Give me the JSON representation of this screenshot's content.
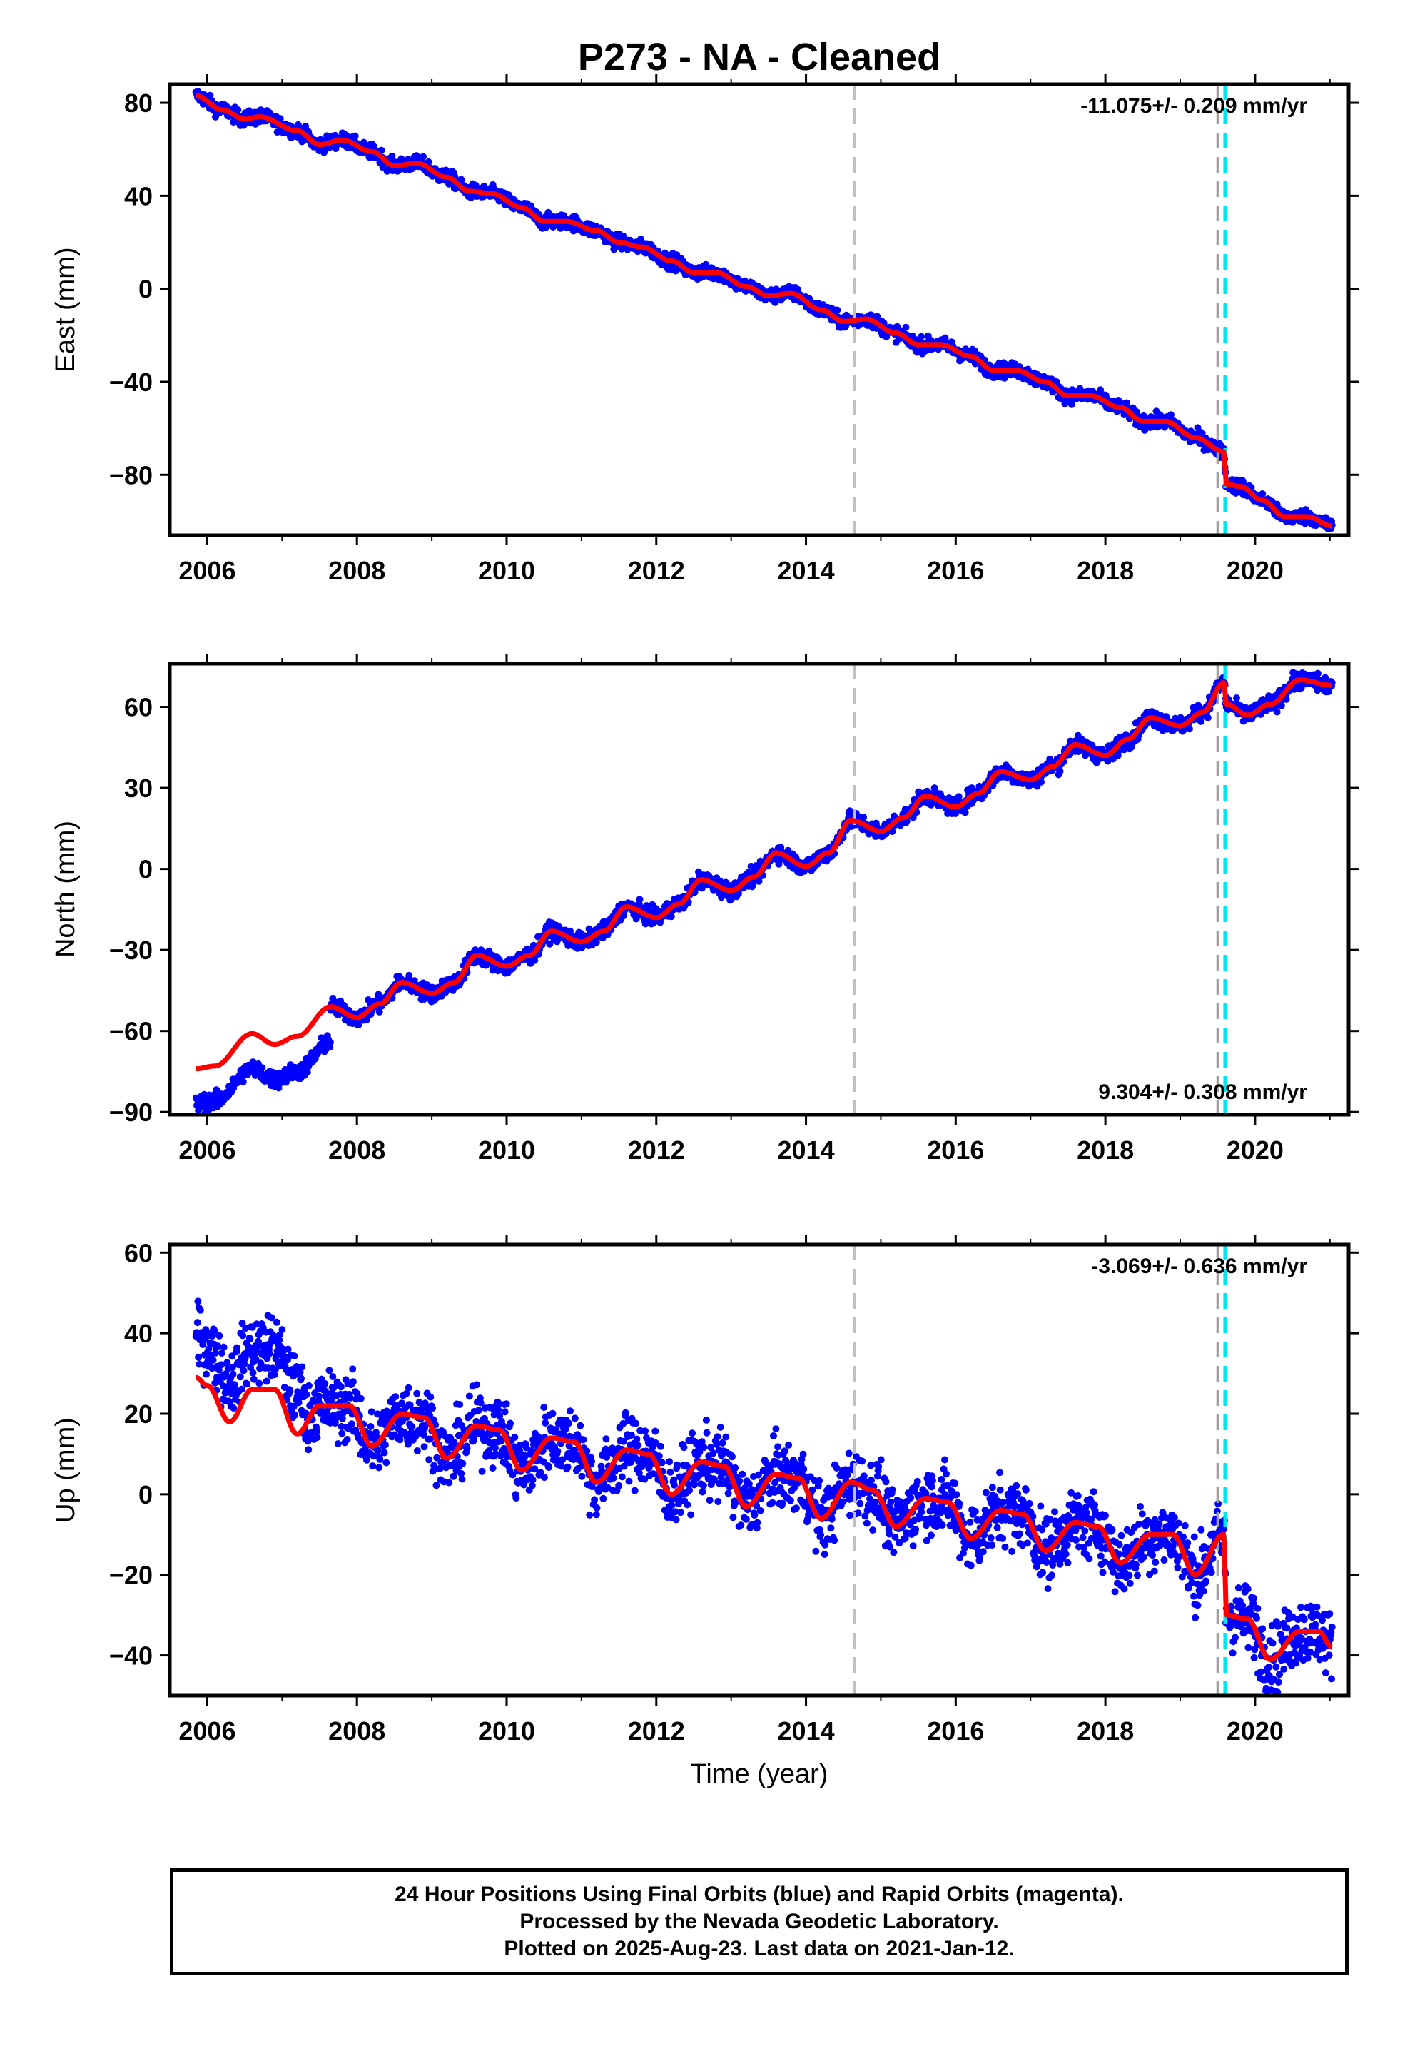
{
  "chart_data": {
    "title": "P273  - NA - Cleaned",
    "xlabel": "Time (year)",
    "xlim": [
      2005.5,
      2021.25
    ],
    "xticks": [
      2006,
      2008,
      2010,
      2012,
      2014,
      2016,
      2018,
      2020
    ],
    "data_start": 2005.85,
    "data_end": 2021.03,
    "vlines": [
      {
        "x": 2014.65,
        "color": "#c0c0c0",
        "style": "dashed"
      },
      {
        "x": 2019.5,
        "color": "#a0a0a0",
        "style": "dashed"
      },
      {
        "x": 2019.6,
        "color": "#00e5ee",
        "style": "dashed"
      }
    ],
    "panels": [
      {
        "type": "scatter",
        "ylabel": "East (mm)",
        "ylim": [
          -106,
          88
        ],
        "yticks": [
          80,
          40,
          0,
          -40,
          -80
        ],
        "rate_label": "-11.075+/- 0.209 mm/yr",
        "rate_position": "top-right",
        "series": [
          {
            "name": "daily positions",
            "color": "#0000ff",
            "kind": "points"
          },
          {
            "name": "model fit",
            "color": "#ff0000",
            "kind": "line"
          }
        ],
        "model": {
          "breaks": [
            [
              2019.6,
              -14
            ]
          ],
          "points": [
            [
              2005.85,
              83
            ],
            [
              2006.2,
              77
            ],
            [
              2006.5,
              73
            ],
            [
              2006.7,
              74
            ],
            [
              2007.2,
              68
            ],
            [
              2007.5,
              62
            ],
            [
              2007.8,
              64
            ],
            [
              2008.2,
              59
            ],
            [
              2008.5,
              53
            ],
            [
              2008.8,
              54
            ],
            [
              2009.2,
              48
            ],
            [
              2009.5,
              42
            ],
            [
              2009.8,
              41
            ],
            [
              2010.2,
              35
            ],
            [
              2010.5,
              29
            ],
            [
              2010.8,
              29
            ],
            [
              2011.2,
              25
            ],
            [
              2011.5,
              20
            ],
            [
              2011.8,
              18
            ],
            [
              2012.2,
              12
            ],
            [
              2012.5,
              7
            ],
            [
              2012.8,
              7
            ],
            [
              2013.2,
              1
            ],
            [
              2013.5,
              -3
            ],
            [
              2013.8,
              -2
            ],
            [
              2014.2,
              -9
            ],
            [
              2014.5,
              -14
            ],
            [
              2014.8,
              -13
            ],
            [
              2015.2,
              -19
            ],
            [
              2015.5,
              -24
            ],
            [
              2015.8,
              -24
            ],
            [
              2016.2,
              -29
            ],
            [
              2016.5,
              -35
            ],
            [
              2016.8,
              -35
            ],
            [
              2017.2,
              -40
            ],
            [
              2017.5,
              -46
            ],
            [
              2017.8,
              -46
            ],
            [
              2018.2,
              -51
            ],
            [
              2018.5,
              -57
            ],
            [
              2018.8,
              -57
            ],
            [
              2019.2,
              -64
            ],
            [
              2019.58,
              -70
            ],
            [
              2019.62,
              -84
            ],
            [
              2019.8,
              -85
            ],
            [
              2020.1,
              -91
            ],
            [
              2020.4,
              -98
            ],
            [
              2020.7,
              -98
            ],
            [
              2021.03,
              -102
            ]
          ]
        }
      },
      {
        "type": "scatter",
        "ylabel": "North (mm)",
        "ylim": [
          -91,
          76
        ],
        "yticks": [
          60,
          30,
          0,
          -30,
          -60,
          -90
        ],
        "rate_label": "9.304+/- 0.308 mm/yr",
        "rate_position": "bottom-right",
        "series": [
          {
            "name": "daily positions",
            "color": "#0000ff",
            "kind": "points"
          },
          {
            "name": "model fit",
            "color": "#ff0000",
            "kind": "line"
          }
        ],
        "model": {
          "breaks": [
            [
              2007.65,
              13
            ],
            [
              2019.6,
              -9
            ]
          ],
          "points": [
            [
              2005.85,
              -74
            ],
            [
              2006.1,
              -73
            ],
            [
              2006.6,
              -61
            ],
            [
              2006.9,
              -65
            ],
            [
              2007.2,
              -62
            ],
            [
              2007.65,
              -51
            ],
            [
              2008.0,
              -55
            ],
            [
              2008.3,
              -50
            ],
            [
              2008.6,
              -42
            ],
            [
              2009.0,
              -46
            ],
            [
              2009.3,
              -42
            ],
            [
              2009.6,
              -32
            ],
            [
              2010.0,
              -36
            ],
            [
              2010.3,
              -32
            ],
            [
              2010.6,
              -23
            ],
            [
              2011.0,
              -27
            ],
            [
              2011.3,
              -23
            ],
            [
              2011.6,
              -14
            ],
            [
              2012.0,
              -18
            ],
            [
              2012.3,
              -13
            ],
            [
              2012.6,
              -4
            ],
            [
              2013.0,
              -8
            ],
            [
              2013.3,
              -3
            ],
            [
              2013.6,
              6
            ],
            [
              2014.0,
              1
            ],
            [
              2014.3,
              6
            ],
            [
              2014.6,
              18
            ],
            [
              2015.0,
              14
            ],
            [
              2015.3,
              19
            ],
            [
              2015.6,
              27
            ],
            [
              2016.0,
              23
            ],
            [
              2016.3,
              28
            ],
            [
              2016.6,
              36
            ],
            [
              2017.0,
              33
            ],
            [
              2017.3,
              38
            ],
            [
              2017.6,
              46
            ],
            [
              2018.0,
              42
            ],
            [
              2018.3,
              48
            ],
            [
              2018.6,
              56
            ],
            [
              2019.0,
              53
            ],
            [
              2019.3,
              58
            ],
            [
              2019.58,
              69
            ],
            [
              2019.62,
              61
            ],
            [
              2019.9,
              57
            ],
            [
              2020.2,
              61
            ],
            [
              2020.6,
              70
            ],
            [
              2021.03,
              68
            ]
          ]
        }
      },
      {
        "type": "scatter",
        "ylabel": "Up (mm)",
        "ylim": [
          -50,
          62
        ],
        "yticks": [
          60,
          40,
          20,
          0,
          -20,
          -40
        ],
        "rate_label": "-3.069+/- 0.636 mm/yr",
        "rate_position": "top-right",
        "series": [
          {
            "name": "daily positions",
            "color": "#0000ff",
            "kind": "points"
          },
          {
            "name": "model fit",
            "color": "#ff0000",
            "kind": "line"
          }
        ],
        "model": {
          "breaks": [
            [
              2019.6,
              -21
            ]
          ],
          "points": [
            [
              2005.85,
              29
            ],
            [
              2006.0,
              27
            ],
            [
              2006.3,
              18
            ],
            [
              2006.6,
              26
            ],
            [
              2006.9,
              26
            ],
            [
              2007.2,
              15
            ],
            [
              2007.5,
              22
            ],
            [
              2007.9,
              22
            ],
            [
              2008.2,
              12
            ],
            [
              2008.6,
              20
            ],
            [
              2008.9,
              19
            ],
            [
              2009.2,
              9
            ],
            [
              2009.6,
              17
            ],
            [
              2009.9,
              16
            ],
            [
              2010.2,
              6
            ],
            [
              2010.6,
              14
            ],
            [
              2010.9,
              13
            ],
            [
              2011.2,
              3
            ],
            [
              2011.6,
              11
            ],
            [
              2011.9,
              10
            ],
            [
              2012.2,
              0
            ],
            [
              2012.6,
              8
            ],
            [
              2012.9,
              7
            ],
            [
              2013.2,
              -3
            ],
            [
              2013.6,
              5
            ],
            [
              2013.9,
              4
            ],
            [
              2014.2,
              -6
            ],
            [
              2014.6,
              3
            ],
            [
              2014.9,
              1
            ],
            [
              2015.2,
              -8
            ],
            [
              2015.6,
              -1
            ],
            [
              2015.9,
              -2
            ],
            [
              2016.2,
              -11
            ],
            [
              2016.6,
              -4
            ],
            [
              2016.9,
              -5
            ],
            [
              2017.2,
              -14
            ],
            [
              2017.6,
              -7
            ],
            [
              2017.9,
              -8
            ],
            [
              2018.2,
              -17
            ],
            [
              2018.6,
              -10
            ],
            [
              2018.9,
              -10
            ],
            [
              2019.2,
              -20
            ],
            [
              2019.58,
              -10
            ],
            [
              2019.62,
              -30
            ],
            [
              2019.9,
              -31
            ],
            [
              2020.2,
              -41
            ],
            [
              2020.6,
              -34
            ],
            [
              2020.85,
              -34
            ],
            [
              2021.03,
              -38
            ]
          ]
        }
      }
    ]
  },
  "footer": {
    "line1": "24 Hour Positions Using Final Orbits (blue) and Rapid Orbits (magenta).",
    "line2": "Processed by the Nevada Geodetic Laboratory.",
    "line3": "Plotted on 2025-Aug-23. Last data on 2021-Jan-12."
  }
}
